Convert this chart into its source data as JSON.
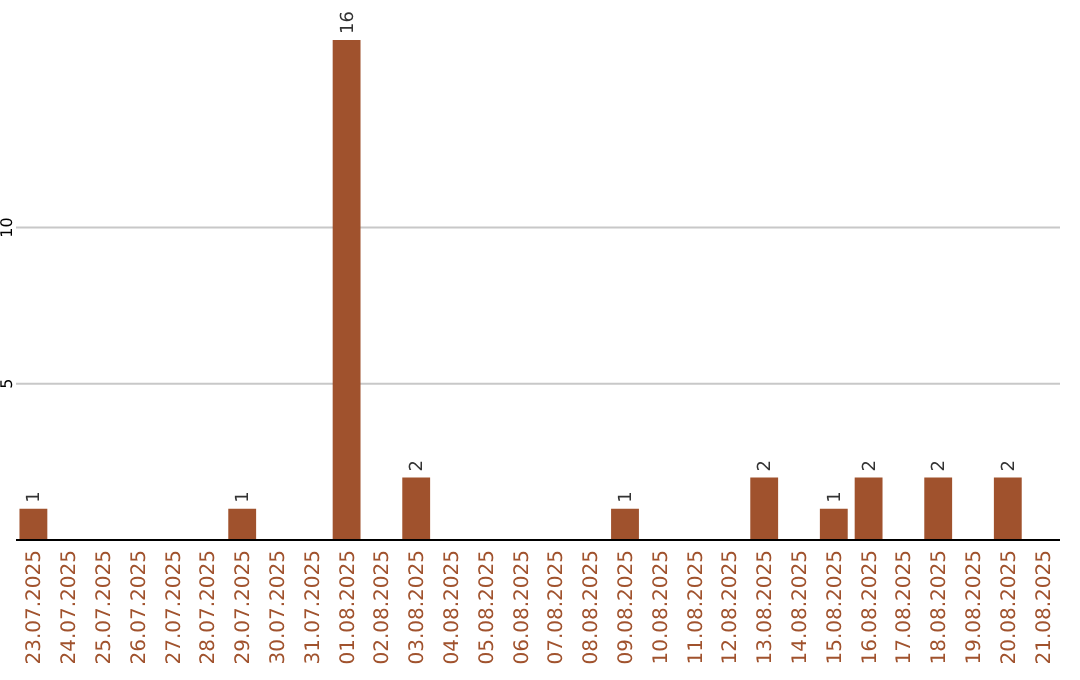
{
  "chart_data": {
    "type": "bar",
    "categories": [
      "23.07.2025",
      "24.07.2025",
      "25.07.2025",
      "26.07.2025",
      "27.07.2025",
      "28.07.2025",
      "29.07.2025",
      "30.07.2025",
      "31.07.2025",
      "01.08.2025",
      "02.08.2025",
      "03.08.2025",
      "04.08.2025",
      "05.08.2025",
      "06.08.2025",
      "07.08.2025",
      "08.08.2025",
      "09.08.2025",
      "10.08.2025",
      "11.08.2025",
      "12.08.2025",
      "13.08.2025",
      "14.08.2025",
      "15.08.2025",
      "16.08.2025",
      "17.08.2025",
      "18.08.2025",
      "19.08.2025",
      "20.08.2025",
      "21.08.2025"
    ],
    "values": [
      1,
      0,
      0,
      0,
      0,
      0,
      1,
      0,
      0,
      16,
      0,
      2,
      0,
      0,
      0,
      0,
      0,
      1,
      0,
      0,
      0,
      2,
      0,
      1,
      2,
      0,
      2,
      0,
      2,
      0
    ],
    "value_labels": [
      "1",
      null,
      null,
      null,
      null,
      null,
      "1",
      null,
      null,
      "16",
      null,
      "2",
      null,
      null,
      null,
      null,
      null,
      "1",
      null,
      null,
      null,
      "2",
      null,
      "1",
      "2",
      null,
      "2",
      null,
      "2",
      null
    ],
    "color": "#a0522d",
    "ylim": [
      0,
      16
    ],
    "yticks": [
      5,
      10
    ],
    "grid": "y"
  }
}
